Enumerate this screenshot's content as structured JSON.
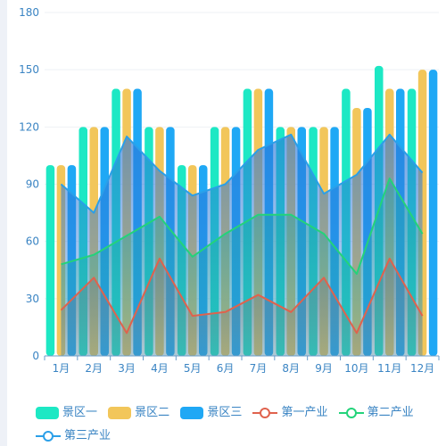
{
  "chart_data": {
    "type": "bar",
    "categories": [
      "1月",
      "2月",
      "3月",
      "4月",
      "5月",
      "6月",
      "7月",
      "8月",
      "9月",
      "10月",
      "11月",
      "12月"
    ],
    "ylim": [
      0,
      180
    ],
    "yticks": [
      0,
      30,
      60,
      90,
      120,
      150,
      180
    ],
    "grid": true,
    "legend_position": "bottom",
    "bar_series": [
      {
        "name": "景区一",
        "color": "#1de8c4",
        "values": [
          100,
          120,
          140,
          120,
          100,
          120,
          140,
          120,
          120,
          140,
          152,
          140
        ]
      },
      {
        "name": "景区二",
        "color": "#f2c65a",
        "values": [
          100,
          120,
          140,
          120,
          100,
          120,
          140,
          120,
          120,
          130,
          140,
          150
        ]
      },
      {
        "name": "景区三",
        "color": "#1fa8f5",
        "values": [
          100,
          120,
          140,
          120,
          100,
          120,
          140,
          120,
          120,
          130,
          140,
          150
        ]
      }
    ],
    "line_series": [
      {
        "name": "第一产业",
        "color": "#e0624d",
        "values": [
          24,
          41,
          12,
          51,
          21,
          23,
          32,
          23,
          41,
          12,
          51,
          21
        ]
      },
      {
        "name": "第二产业",
        "color": "#23d37a",
        "values": [
          48,
          53,
          63,
          73,
          52,
          64,
          74,
          74,
          64,
          43,
          93,
          64
        ]
      },
      {
        "name": "第三产业",
        "color": "#2b9fe8",
        "values": [
          90,
          75,
          115,
          97,
          84,
          90,
          108,
          116,
          85,
          95,
          116,
          96
        ]
      }
    ]
  }
}
